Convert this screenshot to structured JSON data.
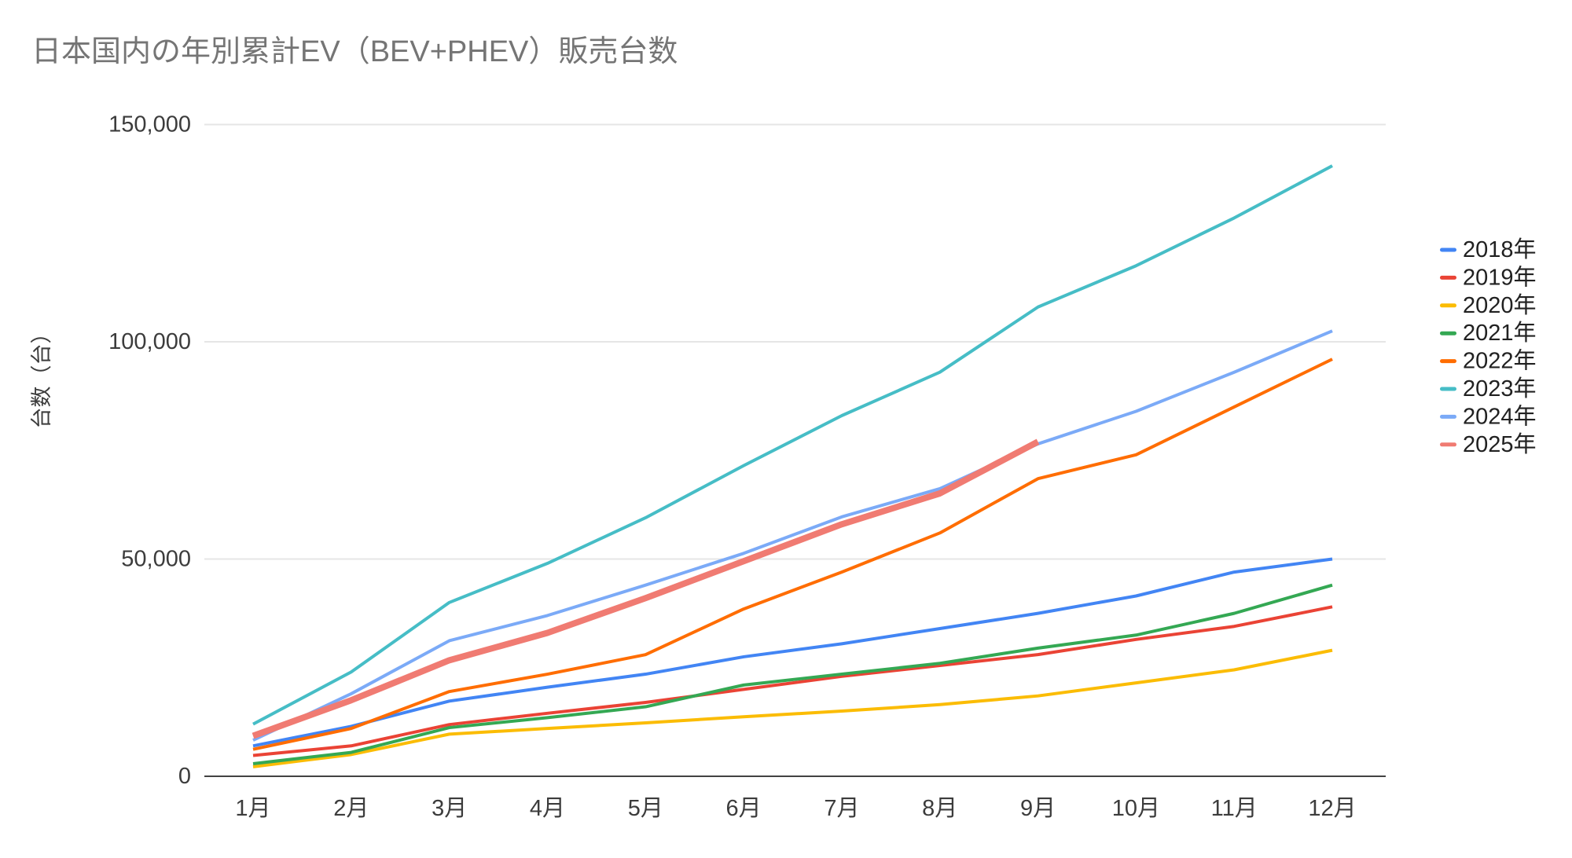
{
  "title": "日本国内の年別累計EV（BEV+PHEV）販売台数",
  "y_axis": {
    "title": "台数（台）",
    "ticks": [
      "0",
      "50,000",
      "100,000",
      "150,000"
    ]
  },
  "x_axis": {
    "ticks": [
      "1月",
      "2月",
      "3月",
      "4月",
      "5月",
      "6月",
      "7月",
      "8月",
      "9月",
      "10月",
      "11月",
      "12月"
    ]
  },
  "legend": {
    "position": "right",
    "items": [
      {
        "label": "2018年",
        "color": "#4285F4"
      },
      {
        "label": "2019年",
        "color": "#EA4335"
      },
      {
        "label": "2020年",
        "color": "#FBBC04"
      },
      {
        "label": "2021年",
        "color": "#34A853"
      },
      {
        "label": "2022年",
        "color": "#FF6D01"
      },
      {
        "label": "2023年",
        "color": "#46BDC6"
      },
      {
        "label": "2024年",
        "color": "#7BAAF7"
      },
      {
        "label": "2025年",
        "color": "#F07B72"
      }
    ]
  },
  "chart_data": {
    "type": "line",
    "title": "日本国内の年別累計EV（BEV+PHEV）販売台数",
    "xlabel": "",
    "ylabel": "台数（台）",
    "x": [
      "1月",
      "2月",
      "3月",
      "4月",
      "5月",
      "6月",
      "7月",
      "8月",
      "9月",
      "10月",
      "11月",
      "12月"
    ],
    "ylim": [
      0,
      150000
    ],
    "y_gridline_values": [
      0,
      50000,
      100000,
      150000
    ],
    "grid": true,
    "legend_position": "right",
    "series": [
      {
        "name": "2018年",
        "color": "#4285F4",
        "width": 4,
        "values": [
          7000,
          11500,
          17300,
          20500,
          23500,
          27500,
          30500,
          34000,
          37500,
          41500,
          47000,
          50000
        ]
      },
      {
        "name": "2019年",
        "color": "#EA4335",
        "width": 4,
        "values": [
          4800,
          7000,
          11900,
          14500,
          17000,
          20000,
          23000,
          25500,
          28000,
          31500,
          34500,
          39000
        ]
      },
      {
        "name": "2020年",
        "color": "#FBBC04",
        "width": 4,
        "values": [
          2200,
          5000,
          9700,
          11000,
          12300,
          13700,
          15000,
          16500,
          18500,
          21500,
          24500,
          29000
        ]
      },
      {
        "name": "2021年",
        "color": "#34A853",
        "width": 4,
        "values": [
          2900,
          5500,
          11200,
          13500,
          16000,
          21000,
          23500,
          26000,
          29500,
          32500,
          37500,
          44000
        ]
      },
      {
        "name": "2022年",
        "color": "#FF6D01",
        "width": 4,
        "values": [
          6200,
          11000,
          19500,
          23500,
          28000,
          38500,
          47000,
          56000,
          68500,
          74000,
          85000,
          96000
        ]
      },
      {
        "name": "2023年",
        "color": "#46BDC6",
        "width": 4,
        "values": [
          12000,
          24000,
          40000,
          49000,
          59500,
          71500,
          83000,
          93000,
          108000,
          117500,
          128500,
          140500
        ]
      },
      {
        "name": "2024年",
        "color": "#7BAAF7",
        "width": 4,
        "values": [
          8300,
          19000,
          31200,
          37000,
          44000,
          51300,
          59700,
          66200,
          76500,
          84000,
          93000,
          102500
        ]
      },
      {
        "name": "2025年",
        "color": "#F07B72",
        "width": 8,
        "values": [
          9300,
          17500,
          26700,
          33000,
          41000,
          49500,
          58000,
          65100,
          77000
        ]
      }
    ]
  }
}
